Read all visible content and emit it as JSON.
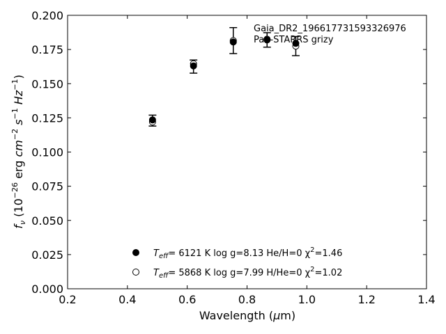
{
  "chart_data": {
    "type": "scatter",
    "xlim": [
      0.2,
      1.4
    ],
    "ylim": [
      0.0,
      0.2
    ],
    "x_ticks": [
      0.2,
      0.4,
      0.6,
      0.8,
      1.0,
      1.2,
      1.4
    ],
    "y_ticks": [
      0.0,
      0.025,
      0.05,
      0.075,
      0.1,
      0.125,
      0.15,
      0.175,
      0.2
    ],
    "x_tick_labels": [
      "0.2",
      "0.4",
      "0.6",
      "0.8",
      "1.0",
      "1.2",
      "1.4"
    ],
    "y_tick_labels": [
      "0.000",
      "0.025",
      "0.050",
      "0.075",
      "0.100",
      "0.125",
      "0.150",
      "0.175",
      "0.200"
    ],
    "xlabel": "Wavelength (μm)",
    "ylabel": "fν (10⁻²⁶ erg cm⁻² s⁻¹ Hz⁻¹)",
    "annotation_lines": [
      "Gaia_DR2_196617731593326976",
      "Pan-STARRS grizy"
    ],
    "observed": {
      "x": [
        0.484,
        0.621,
        0.754,
        0.867,
        0.963
      ],
      "y": [
        0.123,
        0.1625,
        0.1815,
        0.182,
        0.1775
      ],
      "yerr": [
        0.004,
        0.0048,
        0.0095,
        0.0053,
        0.007
      ]
    },
    "series": [
      {
        "name": "Teff= 6121 K log g=8.13 He/H=0 χ2=1.46",
        "marker": "filled-circle",
        "x": [
          0.484,
          0.621,
          0.754,
          0.867,
          0.963
        ],
        "y": [
          0.1235,
          0.163,
          0.1805,
          0.182,
          0.1795
        ]
      },
      {
        "name": "Teff= 5868 K log g=7.99 H/He=0 χ2=1.02",
        "marker": "open-circle",
        "x": [
          0.484,
          0.621,
          0.754,
          0.867,
          0.963
        ],
        "y": [
          0.122,
          0.1645,
          0.1815,
          0.1825,
          0.1775
        ]
      }
    ],
    "legend_placement": "lower-center"
  },
  "legend": {
    "entry1": {
      "teff_sub": "eff",
      "text": "=  6121 K  log g=8.13  He/H=0  χ",
      "chi_sup": "2",
      "chi_val": "=1.46"
    },
    "entry2": {
      "teff_sub": "eff",
      "text": "=  5868 K  log g=7.99  H/He=0  χ",
      "chi_sup": "2",
      "chi_val": "=1.02"
    }
  },
  "ylabel_parts": {
    "f": "f",
    "nu": "ν",
    "open": " (10",
    "exp1": "−26",
    "erg": " erg ",
    "cm": "cm",
    "exp2": "−2",
    "s": " s",
    "exp3": "−1",
    "hz": " Hz",
    "exp4": "−1",
    "close": ")"
  },
  "xlabel_parts": {
    "prefix": "Wavelength (",
    "mu": "μ",
    "suffix": "m)"
  }
}
